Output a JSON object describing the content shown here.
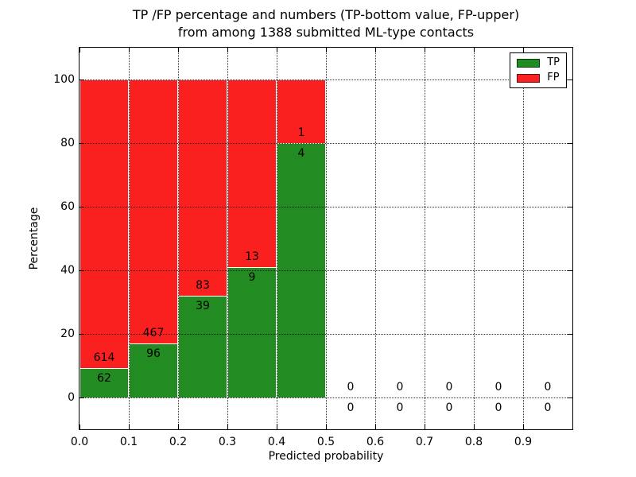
{
  "chart_data": {
    "type": "bar",
    "stacked": true,
    "unit": "percent",
    "title_lines": [
      "TP /FP percentage and numbers (TP-bottom value, FP-upper)",
      "from among 1388 submitted ML-type contacts"
    ],
    "xlabel": "Predicted probability",
    "ylabel": "Percentage",
    "xlim": [
      0.0,
      1.0
    ],
    "ylim": [
      -10,
      110
    ],
    "x_ticks": [
      "0.0",
      "0.1",
      "0.2",
      "0.3",
      "0.4",
      "0.5",
      "0.6",
      "0.7",
      "0.8",
      "0.9"
    ],
    "y_ticks": [
      "0",
      "20",
      "40",
      "60",
      "80",
      "100"
    ],
    "grid": "dotted",
    "legend_position": "upper right",
    "legend": [
      {
        "label": "TP",
        "color": "#228b22"
      },
      {
        "label": "FP",
        "color": "#fb2020"
      }
    ],
    "total_submitted": 1388,
    "bins": [
      {
        "range": [
          0.0,
          0.1
        ],
        "tp": 62,
        "fp": 614,
        "tp_pct": 9.2,
        "fp_pct": 90.8
      },
      {
        "range": [
          0.1,
          0.2
        ],
        "tp": 96,
        "fp": 467,
        "tp_pct": 17.1,
        "fp_pct": 82.9
      },
      {
        "range": [
          0.2,
          0.3
        ],
        "tp": 39,
        "fp": 83,
        "tp_pct": 32.0,
        "fp_pct": 68.0
      },
      {
        "range": [
          0.3,
          0.4
        ],
        "tp": 9,
        "fp": 13,
        "tp_pct": 40.9,
        "fp_pct": 59.1
      },
      {
        "range": [
          0.4,
          0.5
        ],
        "tp": 4,
        "fp": 1,
        "tp_pct": 80.0,
        "fp_pct": 20.0
      },
      {
        "range": [
          0.5,
          0.6
        ],
        "tp": 0,
        "fp": 0,
        "tp_pct": 0,
        "fp_pct": 0
      },
      {
        "range": [
          0.6,
          0.7
        ],
        "tp": 0,
        "fp": 0,
        "tp_pct": 0,
        "fp_pct": 0
      },
      {
        "range": [
          0.7,
          0.8
        ],
        "tp": 0,
        "fp": 0,
        "tp_pct": 0,
        "fp_pct": 0
      },
      {
        "range": [
          0.8,
          0.9
        ],
        "tp": 0,
        "fp": 0,
        "tp_pct": 0,
        "fp_pct": 0
      },
      {
        "range": [
          0.9,
          1.0
        ],
        "tp": 0,
        "fp": 0,
        "tp_pct": 0,
        "fp_pct": 0
      }
    ]
  }
}
